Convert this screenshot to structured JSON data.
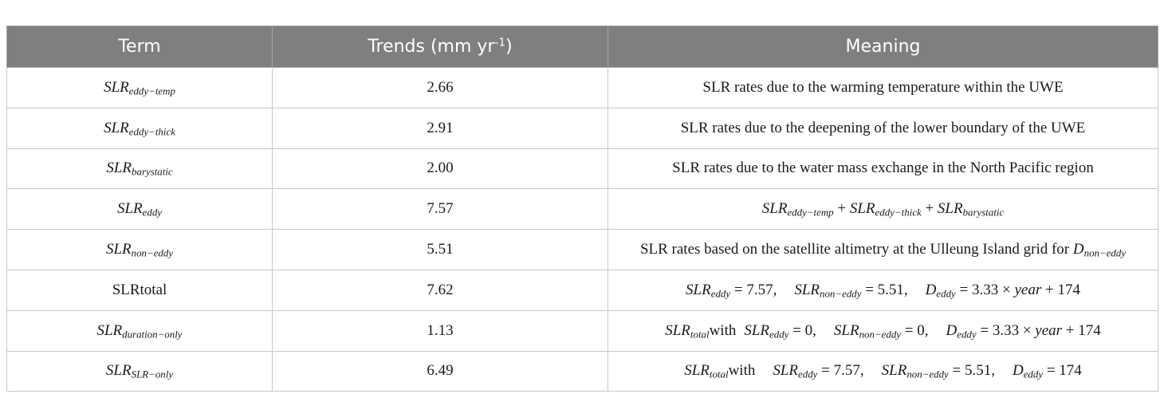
{
  "headers": {
    "term": "Term",
    "trends_prefix": "Trends (mm yr",
    "trends_exp": "-1",
    "trends_suffix": ")",
    "meaning": "Meaning"
  },
  "rows": [
    {
      "term_base": "SLR",
      "term_sub": "eddy−temp",
      "trend": "2.66",
      "meaning": "SLR rates due to the warming temperature within the UWE"
    },
    {
      "term_base": "SLR",
      "term_sub": "eddy−thick",
      "trend": "2.91",
      "meaning": "SLR rates due to the deepening of the lower boundary of the UWE"
    },
    {
      "term_base": "SLR",
      "term_sub": "barystatic",
      "trend": "2.00",
      "meaning": "SLR rates due to the water mass exchange in the North Pacific region"
    },
    {
      "term_base": "SLR",
      "term_sub": "eddy",
      "trend": "7.57"
    },
    {
      "term_base": "SLR",
      "term_sub": "non−eddy",
      "trend": "5.51",
      "meaning": "SLR rates based on the satellite altimetry at the Ulleung Island grid for "
    },
    {
      "term_plain": "SLRtotal",
      "trend": "7.62"
    },
    {
      "term_base": "SLR",
      "term_sub": "duration−only",
      "trend": "1.13"
    },
    {
      "term_base": "SLR",
      "term_sub": "SLR−only",
      "trend": "6.49"
    }
  ],
  "formulas": {
    "slr": "SLR",
    "d": "D",
    "year": "year",
    "plus": " + ",
    "eq": " = ",
    "times": " × ",
    "with": "with",
    "sub_eddy_temp": "eddy−temp",
    "sub_eddy_thick": "eddy−thick",
    "sub_barystatic": "barystatic",
    "sub_eddy": "eddy",
    "sub_non_eddy": "non−eddy",
    "sub_total": "total",
    "comma": ",",
    "v_7_57": "7.57",
    "v_5_51": "5.51",
    "v_3_33": "3.33",
    "v_174": "174",
    "v_0": "0"
  }
}
